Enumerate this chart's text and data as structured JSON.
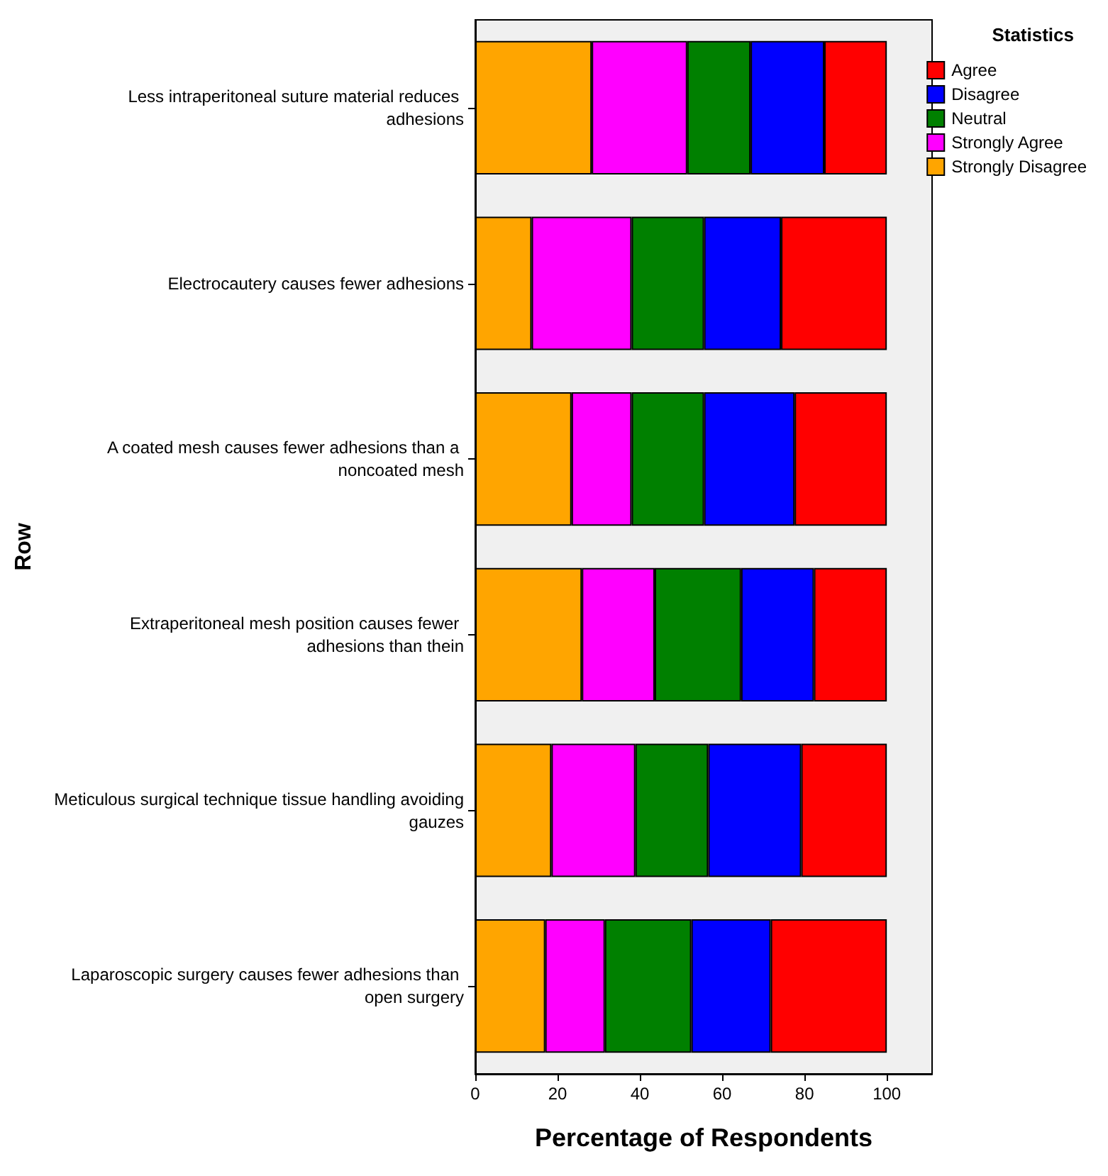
{
  "chart_data": {
    "type": "bar",
    "orientation": "horizontal",
    "stacked": true,
    "ylabel": "Row",
    "xlabel": "Percentage of Respondents",
    "legend_title": "Statistics",
    "legend": "top right",
    "grid": false,
    "categories": [
      "Less intraperitoneal suture material reduces adhesions",
      "Electrocautery causes fewer adhesions",
      "A coated mesh causes fewer adhesions than a noncoated mesh",
      "Extraperitoneal mesh position causes fewer adhesions than thein",
      "Meticulous surgical technique tissue handling avoiding gauzes",
      "Laparoscopic surgery causes fewer adhesions than open surgery"
    ],
    "xlim": [
      0,
      111
    ],
    "xticks": [
      0,
      20,
      40,
      60,
      80,
      100
    ],
    "series": [
      {
        "name": "Strongly Disagree",
        "color": "#ffa500",
        "values": [
          28.3,
          13.7,
          23.4,
          25.9,
          18.5,
          17.0
        ]
      },
      {
        "name": "Strongly Agree",
        "color": "#ff00ff",
        "values": [
          23.2,
          24.3,
          14.6,
          17.7,
          20.4,
          14.5
        ]
      },
      {
        "name": "Neutral",
        "color": "#008000",
        "values": [
          15.4,
          17.6,
          17.6,
          21.0,
          17.7,
          21.0
        ]
      },
      {
        "name": "Disagree",
        "color": "#0000ff",
        "values": [
          17.9,
          18.7,
          22.0,
          17.7,
          22.6,
          19.3
        ]
      },
      {
        "name": "Agree",
        "color": "#ff0000",
        "values": [
          15.2,
          25.7,
          22.4,
          17.7,
          20.8,
          28.2
        ]
      }
    ]
  }
}
